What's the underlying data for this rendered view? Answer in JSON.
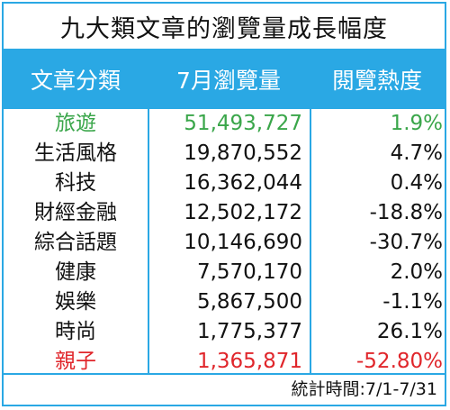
{
  "title": "九大類文章的瀏覽量成長幅度",
  "colors": {
    "accent": "#2aa8e4",
    "highlight_green": "#3aa64a",
    "highlight_red": "#e0262b"
  },
  "headers": {
    "category": "文章分類",
    "views": "7月瀏覽量",
    "heat": "閱覽熱度"
  },
  "rows": [
    {
      "category": "旅遊",
      "views": "51,493,727",
      "heat": "1.9%",
      "highlight": "green"
    },
    {
      "category": "生活風格",
      "views": "19,870,552",
      "heat": "4.7%"
    },
    {
      "category": "科技",
      "views": "16,362,044",
      "heat": "0.4%"
    },
    {
      "category": "財經金融",
      "views": "12,502,172",
      "heat": "-18.8%"
    },
    {
      "category": "綜合話題",
      "views": "10,146,690",
      "heat": "-30.7%"
    },
    {
      "category": "健康",
      "views": "7,570,170",
      "heat": "2.0%"
    },
    {
      "category": "娛樂",
      "views": "5,867,500",
      "heat": "-1.1%"
    },
    {
      "category": "時尚",
      "views": "1,775,377",
      "heat": "26.1%"
    },
    {
      "category": "親子",
      "views": "1,365,871",
      "heat": "-52.80%",
      "highlight": "red"
    }
  ],
  "footer": "統計時間:7/1-7/31"
}
